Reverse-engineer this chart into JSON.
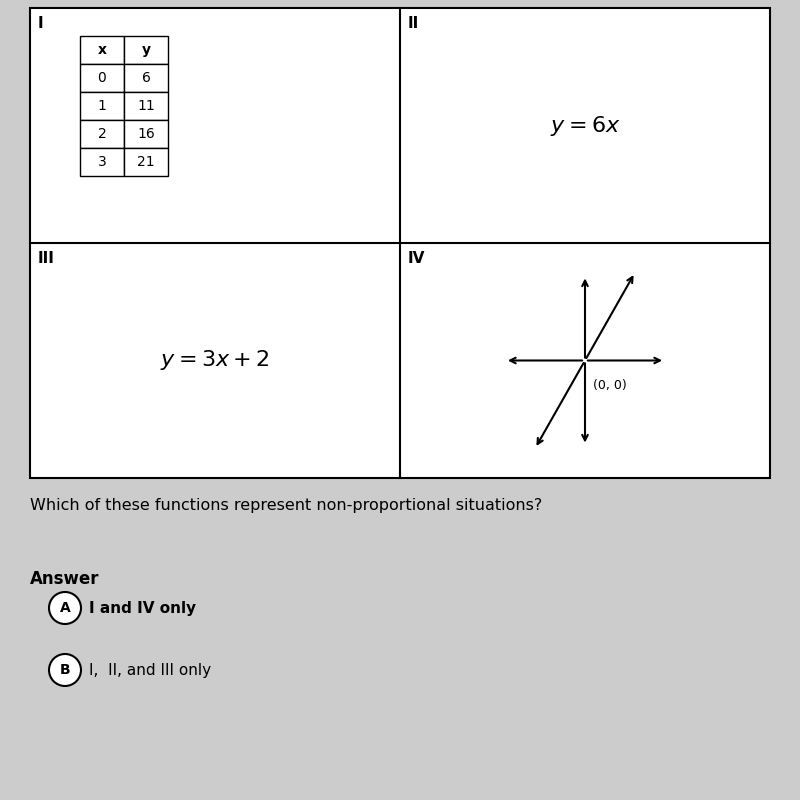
{
  "bg_color": "#cccccc",
  "white": "#ffffff",
  "black": "#000000",
  "table_data": {
    "headers": [
      "x",
      "y"
    ],
    "rows": [
      [
        "0",
        "6"
      ],
      [
        "1",
        "11"
      ],
      [
        "2",
        "16"
      ],
      [
        "3",
        "21"
      ]
    ]
  },
  "quadrant_labels": [
    "I",
    "II",
    "III",
    "IV"
  ],
  "eq_II": "$y = 6x$",
  "eq_III": "$y = 3x + 2$",
  "question": "Which of these functions represent non-proportional situations?",
  "answer_label": "Answer",
  "choices": [
    {
      "letter": "A",
      "text": "I and IV only",
      "bold": true
    },
    {
      "letter": "B",
      "text": "I,  II, and III only",
      "bold": false
    }
  ]
}
